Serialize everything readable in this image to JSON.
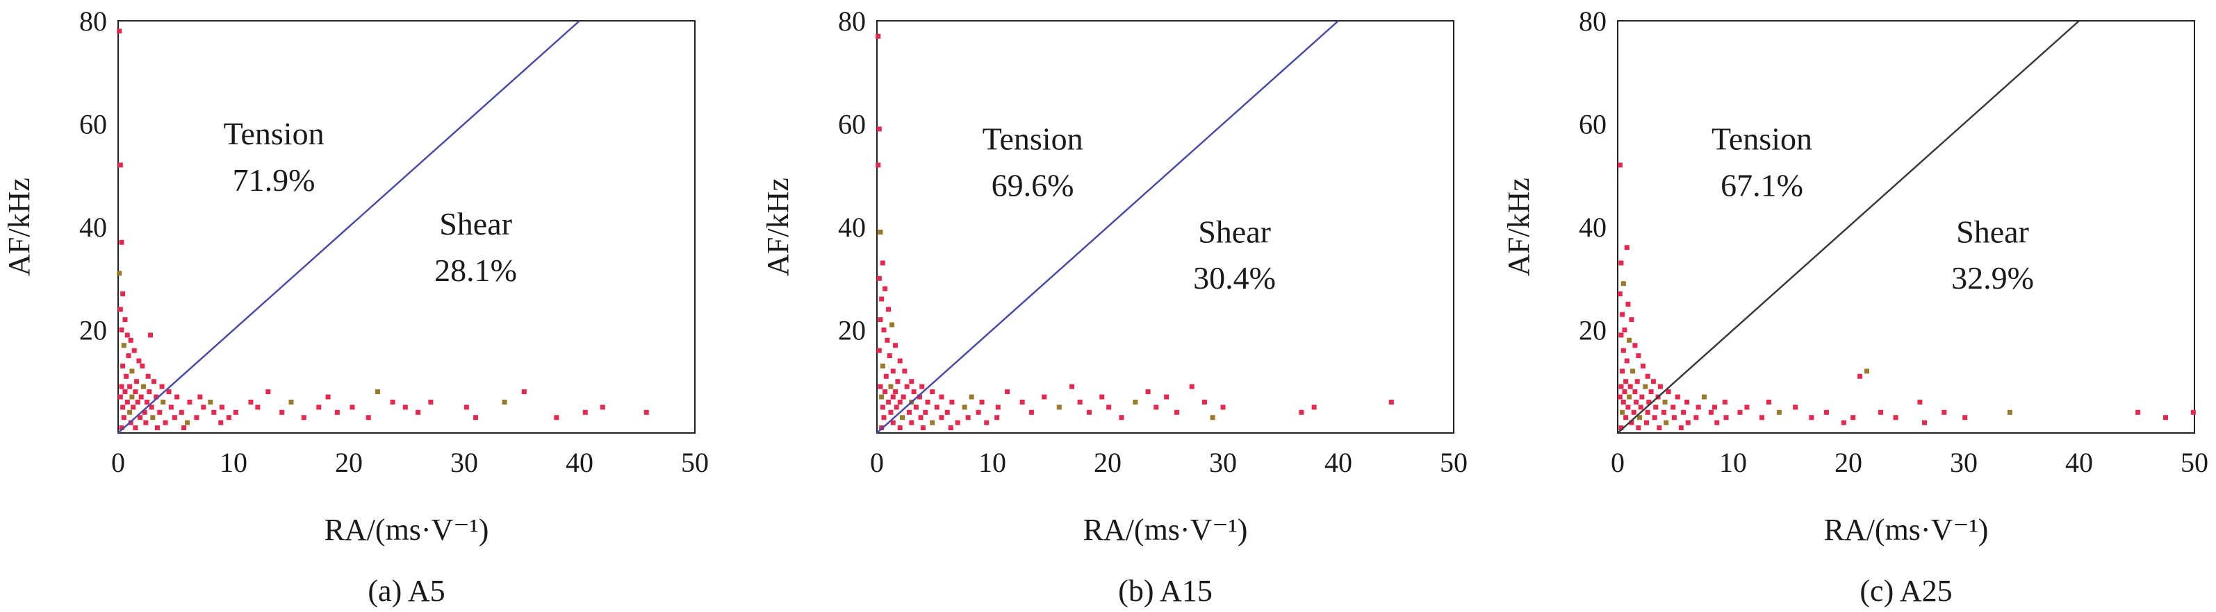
{
  "chart_data": [
    {
      "type": "scatter",
      "caption": "(a) A5",
      "xlabel": "RA/(ms·V⁻¹)",
      "ylabel": "AF/kHz",
      "xlim": [
        0,
        50
      ],
      "ylim": [
        0,
        80
      ],
      "xticks": [
        "0",
        "10",
        "20",
        "30",
        "40",
        "50"
      ],
      "yticks": [
        "20",
        "40",
        "60",
        "80"
      ],
      "grid": false,
      "divider_line": {
        "points": [
          [
            0,
            0
          ],
          [
            40,
            80
          ]
        ],
        "color": "#4a4aa8"
      },
      "annotations": [
        {
          "text": "Tension",
          "x": 13.5,
          "y": 56
        },
        {
          "text": "71.9%",
          "x": 13.5,
          "y": 47
        },
        {
          "text": "Shear",
          "x": 31,
          "y": 38.5
        },
        {
          "text": "28.1%",
          "x": 31,
          "y": 29.5
        }
      ],
      "point_color": "#e8274f",
      "points": [
        [
          0.1,
          78
        ],
        [
          0.2,
          52
        ],
        [
          0.3,
          37
        ],
        [
          0.1,
          31
        ],
        [
          0.4,
          27
        ],
        [
          0.2,
          24
        ],
        [
          0.6,
          22
        ],
        [
          0.3,
          20
        ],
        [
          0.8,
          19
        ],
        [
          1.1,
          18
        ],
        [
          0.5,
          17
        ],
        [
          2.8,
          19
        ],
        [
          1.4,
          16
        ],
        [
          0.9,
          15
        ],
        [
          1.8,
          14
        ],
        [
          0.4,
          13
        ],
        [
          2.1,
          13
        ],
        [
          1.2,
          12
        ],
        [
          0.7,
          11
        ],
        [
          2.6,
          11
        ],
        [
          1.6,
          10
        ],
        [
          3.1,
          10
        ],
        [
          0.3,
          9
        ],
        [
          1.0,
          9
        ],
        [
          2.2,
          9
        ],
        [
          3.8,
          9
        ],
        [
          0.6,
          8
        ],
        [
          1.5,
          8
        ],
        [
          2.7,
          8
        ],
        [
          4.4,
          8
        ],
        [
          0.2,
          7
        ],
        [
          1.2,
          7
        ],
        [
          2.0,
          7
        ],
        [
          3.3,
          7
        ],
        [
          5.1,
          7
        ],
        [
          0.8,
          6
        ],
        [
          1.7,
          6
        ],
        [
          2.5,
          6
        ],
        [
          3.9,
          6
        ],
        [
          6.2,
          6
        ],
        [
          0.4,
          5
        ],
        [
          1.3,
          5
        ],
        [
          2.9,
          5
        ],
        [
          4.6,
          5
        ],
        [
          7.4,
          5
        ],
        [
          1.0,
          4
        ],
        [
          2.3,
          4
        ],
        [
          3.6,
          4
        ],
        [
          5.5,
          4
        ],
        [
          8.3,
          4
        ],
        [
          0.5,
          3
        ],
        [
          1.9,
          3
        ],
        [
          3.0,
          3
        ],
        [
          4.9,
          3
        ],
        [
          6.8,
          3
        ],
        [
          9.6,
          3
        ],
        [
          1.1,
          2
        ],
        [
          2.4,
          2
        ],
        [
          4.1,
          2
        ],
        [
          6.0,
          2
        ],
        [
          8.9,
          2
        ],
        [
          0.3,
          1
        ],
        [
          1.5,
          1
        ],
        [
          3.4,
          1
        ],
        [
          5.7,
          1
        ],
        [
          7.1,
          7
        ],
        [
          8.0,
          6
        ],
        [
          9.0,
          5
        ],
        [
          10.2,
          4
        ],
        [
          11.5,
          6
        ],
        [
          12.1,
          5
        ],
        [
          13.0,
          8
        ],
        [
          14.2,
          4
        ],
        [
          15.0,
          6
        ],
        [
          16.1,
          3
        ],
        [
          17.4,
          5
        ],
        [
          18.2,
          7
        ],
        [
          19.0,
          4
        ],
        [
          20.3,
          5
        ],
        [
          21.7,
          3
        ],
        [
          22.5,
          8
        ],
        [
          23.8,
          6
        ],
        [
          24.9,
          5
        ],
        [
          26.0,
          4
        ],
        [
          27.1,
          6
        ],
        [
          30.2,
          5
        ],
        [
          31.0,
          3
        ],
        [
          33.5,
          6
        ],
        [
          35.2,
          8
        ],
        [
          38.0,
          3
        ],
        [
          40.5,
          4
        ],
        [
          42.0,
          5
        ],
        [
          45.8,
          4
        ]
      ]
    },
    {
      "type": "scatter",
      "caption": "(b) A15",
      "xlabel": "RA/(ms·V⁻¹)",
      "ylabel": "AF/kHz",
      "xlim": [
        0,
        50
      ],
      "ylim": [
        0,
        80
      ],
      "xticks": [
        "0",
        "10",
        "20",
        "30",
        "40",
        "50"
      ],
      "yticks": [
        "20",
        "40",
        "60",
        "80"
      ],
      "grid": false,
      "divider_line": {
        "points": [
          [
            0,
            0
          ],
          [
            40,
            80
          ]
        ],
        "color": "#4a4aa8"
      },
      "annotations": [
        {
          "text": "Tension",
          "x": 13.5,
          "y": 55
        },
        {
          "text": "69.6%",
          "x": 13.5,
          "y": 46
        },
        {
          "text": "Shear",
          "x": 31,
          "y": 37
        },
        {
          "text": "30.4%",
          "x": 31,
          "y": 28
        }
      ],
      "point_color": "#e8274f",
      "points": [
        [
          0.1,
          77
        ],
        [
          0.2,
          59
        ],
        [
          0.1,
          52
        ],
        [
          0.3,
          39
        ],
        [
          0.5,
          33
        ],
        [
          0.2,
          30
        ],
        [
          0.7,
          28
        ],
        [
          0.4,
          26
        ],
        [
          1.0,
          24
        ],
        [
          0.3,
          22
        ],
        [
          1.3,
          21
        ],
        [
          0.6,
          20
        ],
        [
          0.9,
          18
        ],
        [
          1.6,
          17
        ],
        [
          0.2,
          16
        ],
        [
          1.1,
          15
        ],
        [
          2.0,
          14
        ],
        [
          0.5,
          13
        ],
        [
          1.4,
          12
        ],
        [
          2.4,
          12
        ],
        [
          0.8,
          11
        ],
        [
          1.8,
          10
        ],
        [
          3.0,
          10
        ],
        [
          0.3,
          9
        ],
        [
          1.2,
          9
        ],
        [
          2.6,
          9
        ],
        [
          3.9,
          9
        ],
        [
          0.7,
          8
        ],
        [
          1.6,
          8
        ],
        [
          3.2,
          8
        ],
        [
          4.8,
          8
        ],
        [
          0.4,
          7
        ],
        [
          1.4,
          7
        ],
        [
          2.3,
          7
        ],
        [
          3.7,
          7
        ],
        [
          5.6,
          7
        ],
        [
          1.0,
          6
        ],
        [
          2.0,
          6
        ],
        [
          3.0,
          6
        ],
        [
          4.4,
          6
        ],
        [
          6.5,
          6
        ],
        [
          0.5,
          5
        ],
        [
          1.7,
          5
        ],
        [
          3.4,
          5
        ],
        [
          5.2,
          5
        ],
        [
          7.6,
          5
        ],
        [
          1.2,
          4
        ],
        [
          2.8,
          4
        ],
        [
          4.2,
          4
        ],
        [
          6.1,
          4
        ],
        [
          8.8,
          4
        ],
        [
          0.6,
          3
        ],
        [
          2.2,
          3
        ],
        [
          3.8,
          3
        ],
        [
          5.6,
          3
        ],
        [
          7.9,
          3
        ],
        [
          10.4,
          3
        ],
        [
          1.4,
          2
        ],
        [
          3.0,
          2
        ],
        [
          4.8,
          2
        ],
        [
          7.0,
          2
        ],
        [
          9.5,
          2
        ],
        [
          0.4,
          1
        ],
        [
          2.0,
          1
        ],
        [
          4.0,
          1
        ],
        [
          6.4,
          1
        ],
        [
          8.2,
          7
        ],
        [
          9.1,
          6
        ],
        [
          10.5,
          5
        ],
        [
          11.3,
          8
        ],
        [
          12.6,
          6
        ],
        [
          13.4,
          4
        ],
        [
          14.5,
          7
        ],
        [
          15.8,
          5
        ],
        [
          16.9,
          9
        ],
        [
          17.6,
          6
        ],
        [
          18.4,
          4
        ],
        [
          19.5,
          7
        ],
        [
          20.1,
          5
        ],
        [
          21.2,
          3
        ],
        [
          22.4,
          6
        ],
        [
          23.5,
          8
        ],
        [
          24.2,
          5
        ],
        [
          25.1,
          7
        ],
        [
          26.0,
          4
        ],
        [
          27.3,
          9
        ],
        [
          28.4,
          6
        ],
        [
          29.1,
          3
        ],
        [
          30.0,
          5
        ],
        [
          36.8,
          4
        ],
        [
          37.9,
          5
        ],
        [
          44.6,
          6
        ]
      ]
    },
    {
      "type": "scatter",
      "caption": "(c) A25",
      "xlabel": "RA/(ms·V⁻¹)",
      "ylabel": "AF/kHz",
      "xlim": [
        0,
        50
      ],
      "ylim": [
        0,
        80
      ],
      "xticks": [
        "0",
        "10",
        "20",
        "30",
        "40",
        "50"
      ],
      "yticks": [
        "20",
        "40",
        "60",
        "80"
      ],
      "grid": false,
      "divider_line": {
        "points": [
          [
            0,
            0
          ],
          [
            40,
            80
          ]
        ],
        "color": "#3a3a3a"
      },
      "annotations": [
        {
          "text": "Tension",
          "x": 12.5,
          "y": 55
        },
        {
          "text": "67.1%",
          "x": 12.5,
          "y": 46
        },
        {
          "text": "Shear",
          "x": 32.5,
          "y": 37
        },
        {
          "text": "32.9%",
          "x": 32.5,
          "y": 28
        }
      ],
      "point_color": "#e8274f",
      "points": [
        [
          0.2,
          52
        ],
        [
          0.8,
          36
        ],
        [
          0.3,
          33
        ],
        [
          0.5,
          29
        ],
        [
          0.2,
          27
        ],
        [
          0.9,
          25
        ],
        [
          0.4,
          23
        ],
        [
          1.2,
          22
        ],
        [
          0.6,
          20
        ],
        [
          0.3,
          19
        ],
        [
          1.0,
          18
        ],
        [
          1.5,
          17
        ],
        [
          0.5,
          16
        ],
        [
          1.8,
          15
        ],
        [
          0.8,
          14
        ],
        [
          2.2,
          13
        ],
        [
          0.4,
          12
        ],
        [
          1.3,
          12
        ],
        [
          2.6,
          11
        ],
        [
          0.7,
          10
        ],
        [
          1.7,
          10
        ],
        [
          3.1,
          10
        ],
        [
          0.3,
          9
        ],
        [
          1.1,
          9
        ],
        [
          2.4,
          9
        ],
        [
          3.7,
          9
        ],
        [
          0.6,
          8
        ],
        [
          1.5,
          8
        ],
        [
          2.9,
          8
        ],
        [
          4.4,
          8
        ],
        [
          0.2,
          7
        ],
        [
          1.0,
          7
        ],
        [
          2.1,
          7
        ],
        [
          3.5,
          7
        ],
        [
          5.2,
          7
        ],
        [
          0.5,
          6
        ],
        [
          1.6,
          6
        ],
        [
          2.7,
          6
        ],
        [
          4.1,
          6
        ],
        [
          6.0,
          6
        ],
        [
          0.9,
          5
        ],
        [
          2.0,
          5
        ],
        [
          3.3,
          5
        ],
        [
          4.8,
          5
        ],
        [
          7.0,
          5
        ],
        [
          0.4,
          4
        ],
        [
          1.4,
          4
        ],
        [
          2.6,
          4
        ],
        [
          4.0,
          4
        ],
        [
          5.7,
          4
        ],
        [
          8.1,
          4
        ],
        [
          0.7,
          3
        ],
        [
          1.9,
          3
        ],
        [
          3.2,
          3
        ],
        [
          4.9,
          3
        ],
        [
          6.8,
          3
        ],
        [
          9.4,
          3
        ],
        [
          1.2,
          2
        ],
        [
          2.5,
          2
        ],
        [
          4.2,
          2
        ],
        [
          6.1,
          2
        ],
        [
          8.6,
          2
        ],
        [
          0.3,
          1
        ],
        [
          1.8,
          1
        ],
        [
          3.6,
          1
        ],
        [
          5.5,
          1
        ],
        [
          7.5,
          7
        ],
        [
          8.4,
          5
        ],
        [
          9.3,
          6
        ],
        [
          10.6,
          4
        ],
        [
          11.2,
          5
        ],
        [
          12.5,
          3
        ],
        [
          13.1,
          6
        ],
        [
          14.0,
          4
        ],
        [
          15.4,
          5
        ],
        [
          16.8,
          3
        ],
        [
          18.1,
          4
        ],
        [
          19.6,
          2
        ],
        [
          20.4,
          3
        ],
        [
          21.0,
          11
        ],
        [
          21.6,
          12
        ],
        [
          22.8,
          4
        ],
        [
          24.1,
          3
        ],
        [
          26.2,
          6
        ],
        [
          26.6,
          2
        ],
        [
          28.3,
          4
        ],
        [
          30.1,
          3
        ],
        [
          34.0,
          4
        ],
        [
          45.1,
          4
        ],
        [
          47.5,
          3
        ],
        [
          49.9,
          4
        ]
      ]
    }
  ]
}
